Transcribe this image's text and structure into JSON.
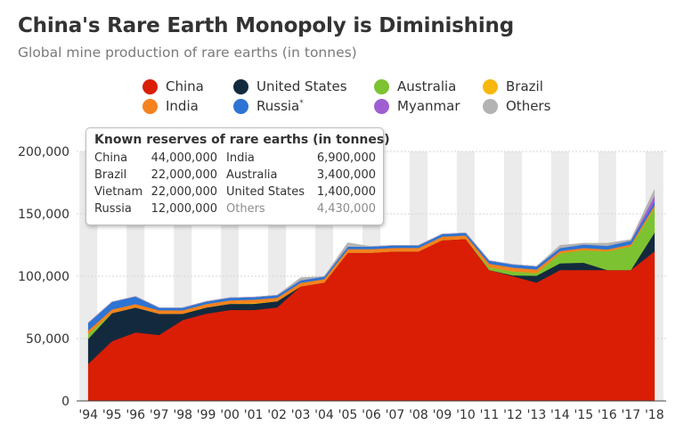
{
  "title": "China's Rare Earth Monopoly is Diminishing",
  "subtitle": "Global mine production of rare earths (in tonnes)",
  "legend": [
    {
      "label": "China",
      "color": "#d91e05",
      "sup": ""
    },
    {
      "label": "United States",
      "color": "#132a3e",
      "sup": ""
    },
    {
      "label": "Australia",
      "color": "#7dc231",
      "sup": ""
    },
    {
      "label": "Brazil",
      "color": "#f7b80e",
      "sup": ""
    },
    {
      "label": "India",
      "color": "#f5821f",
      "sup": ""
    },
    {
      "label": "Russia",
      "color": "#2d74d4",
      "sup": "*"
    },
    {
      "label": "Myanmar",
      "color": "#9f5fd1",
      "sup": ""
    },
    {
      "label": "Others",
      "color": "#b3b3b3",
      "sup": ""
    }
  ],
  "reserves": {
    "title": "Known reserves of rare earths (in tonnes)",
    "left": [
      {
        "name": "China",
        "value": "44,000,000"
      },
      {
        "name": "Brazil",
        "value": "22,000,000"
      },
      {
        "name": "Vietnam",
        "value": "22,000,000"
      },
      {
        "name": "Russia",
        "value": "12,000,000"
      }
    ],
    "right": [
      {
        "name": "India",
        "value": "6,900,000"
      },
      {
        "name": "Australia",
        "value": "3,400,000"
      },
      {
        "name": "United States",
        "value": "1,400,000"
      },
      {
        "name": "Others",
        "value": "4,430,000"
      }
    ]
  },
  "chart_data": {
    "type": "area",
    "stacked": true,
    "x": [
      "'94",
      "'95",
      "'96",
      "'97",
      "'98",
      "'99",
      "'00",
      "'01",
      "'02",
      "'03",
      "'04",
      "'05",
      "'06",
      "'07",
      "'08",
      "'09",
      "'10",
      "'11",
      "'12",
      "'13",
      "'14",
      "'15",
      "'16",
      "'17",
      "'18"
    ],
    "yticks": [
      "0",
      "50,000",
      "100,000",
      "150,000",
      "200,000"
    ],
    "ylim": [
      0,
      200000
    ],
    "grid": true,
    "series": [
      {
        "name": "China",
        "color": "#d91e05",
        "values": [
          30000,
          48000,
          55000,
          53000,
          65000,
          70000,
          73000,
          73000,
          75000,
          92000,
          95000,
          119000,
          119000,
          120000,
          120000,
          129000,
          130000,
          105000,
          100000,
          95000,
          105000,
          105000,
          105000,
          105000,
          120000
        ]
      },
      {
        "name": "United States",
        "color": "#132a3e",
        "values": [
          20000,
          22500,
          20000,
          17000,
          5000,
          5000,
          5000,
          5000,
          5000,
          0,
          0,
          0,
          0,
          0,
          0,
          0,
          0,
          0,
          800,
          5500,
          5400,
          5900,
          0,
          0,
          15000
        ]
      },
      {
        "name": "Australia",
        "color": "#7dc231",
        "values": [
          3900,
          0,
          0,
          0,
          0,
          0,
          0,
          0,
          0,
          0,
          0,
          0,
          0,
          0,
          0,
          0,
          0,
          2200,
          3200,
          2000,
          8000,
          10000,
          15000,
          19000,
          20000
        ]
      },
      {
        "name": "Brazil",
        "color": "#f7b80e",
        "values": [
          100,
          100,
          100,
          100,
          100,
          100,
          100,
          600,
          100,
          100,
          100,
          100,
          100,
          100,
          100,
          100,
          100,
          100,
          100,
          100,
          100,
          100,
          100,
          100,
          100
        ]
      },
      {
        "name": "India",
        "color": "#f5821f",
        "values": [
          2700,
          2800,
          2700,
          2700,
          2700,
          2700,
          2700,
          2700,
          2700,
          2700,
          2700,
          2700,
          2700,
          2700,
          2700,
          2700,
          2700,
          2800,
          2900,
          2900,
          1700,
          1700,
          1500,
          1500,
          1800
        ]
      },
      {
        "name": "Russia",
        "color": "#2d74d4",
        "values": [
          6000,
          6000,
          6000,
          2000,
          2000,
          2000,
          2000,
          2000,
          2000,
          2000,
          2000,
          2000,
          2000,
          2000,
          2000,
          2000,
          2000,
          2400,
          2400,
          2400,
          2500,
          2800,
          2800,
          3000,
          2600
        ]
      },
      {
        "name": "Myanmar",
        "color": "#9f5fd1",
        "values": [
          0,
          0,
          0,
          0,
          0,
          0,
          0,
          0,
          0,
          0,
          0,
          0,
          0,
          0,
          0,
          0,
          0,
          0,
          0,
          0,
          0,
          0,
          0,
          0,
          5000
        ]
      },
      {
        "name": "Others",
        "color": "#b3b3b3",
        "values": [
          0,
          0,
          0,
          0,
          0,
          0,
          0,
          0,
          0,
          2000,
          0,
          3000,
          0,
          0,
          0,
          0,
          0,
          0,
          0,
          0,
          2000,
          1000,
          2000,
          800,
          5000
        ]
      }
    ]
  }
}
